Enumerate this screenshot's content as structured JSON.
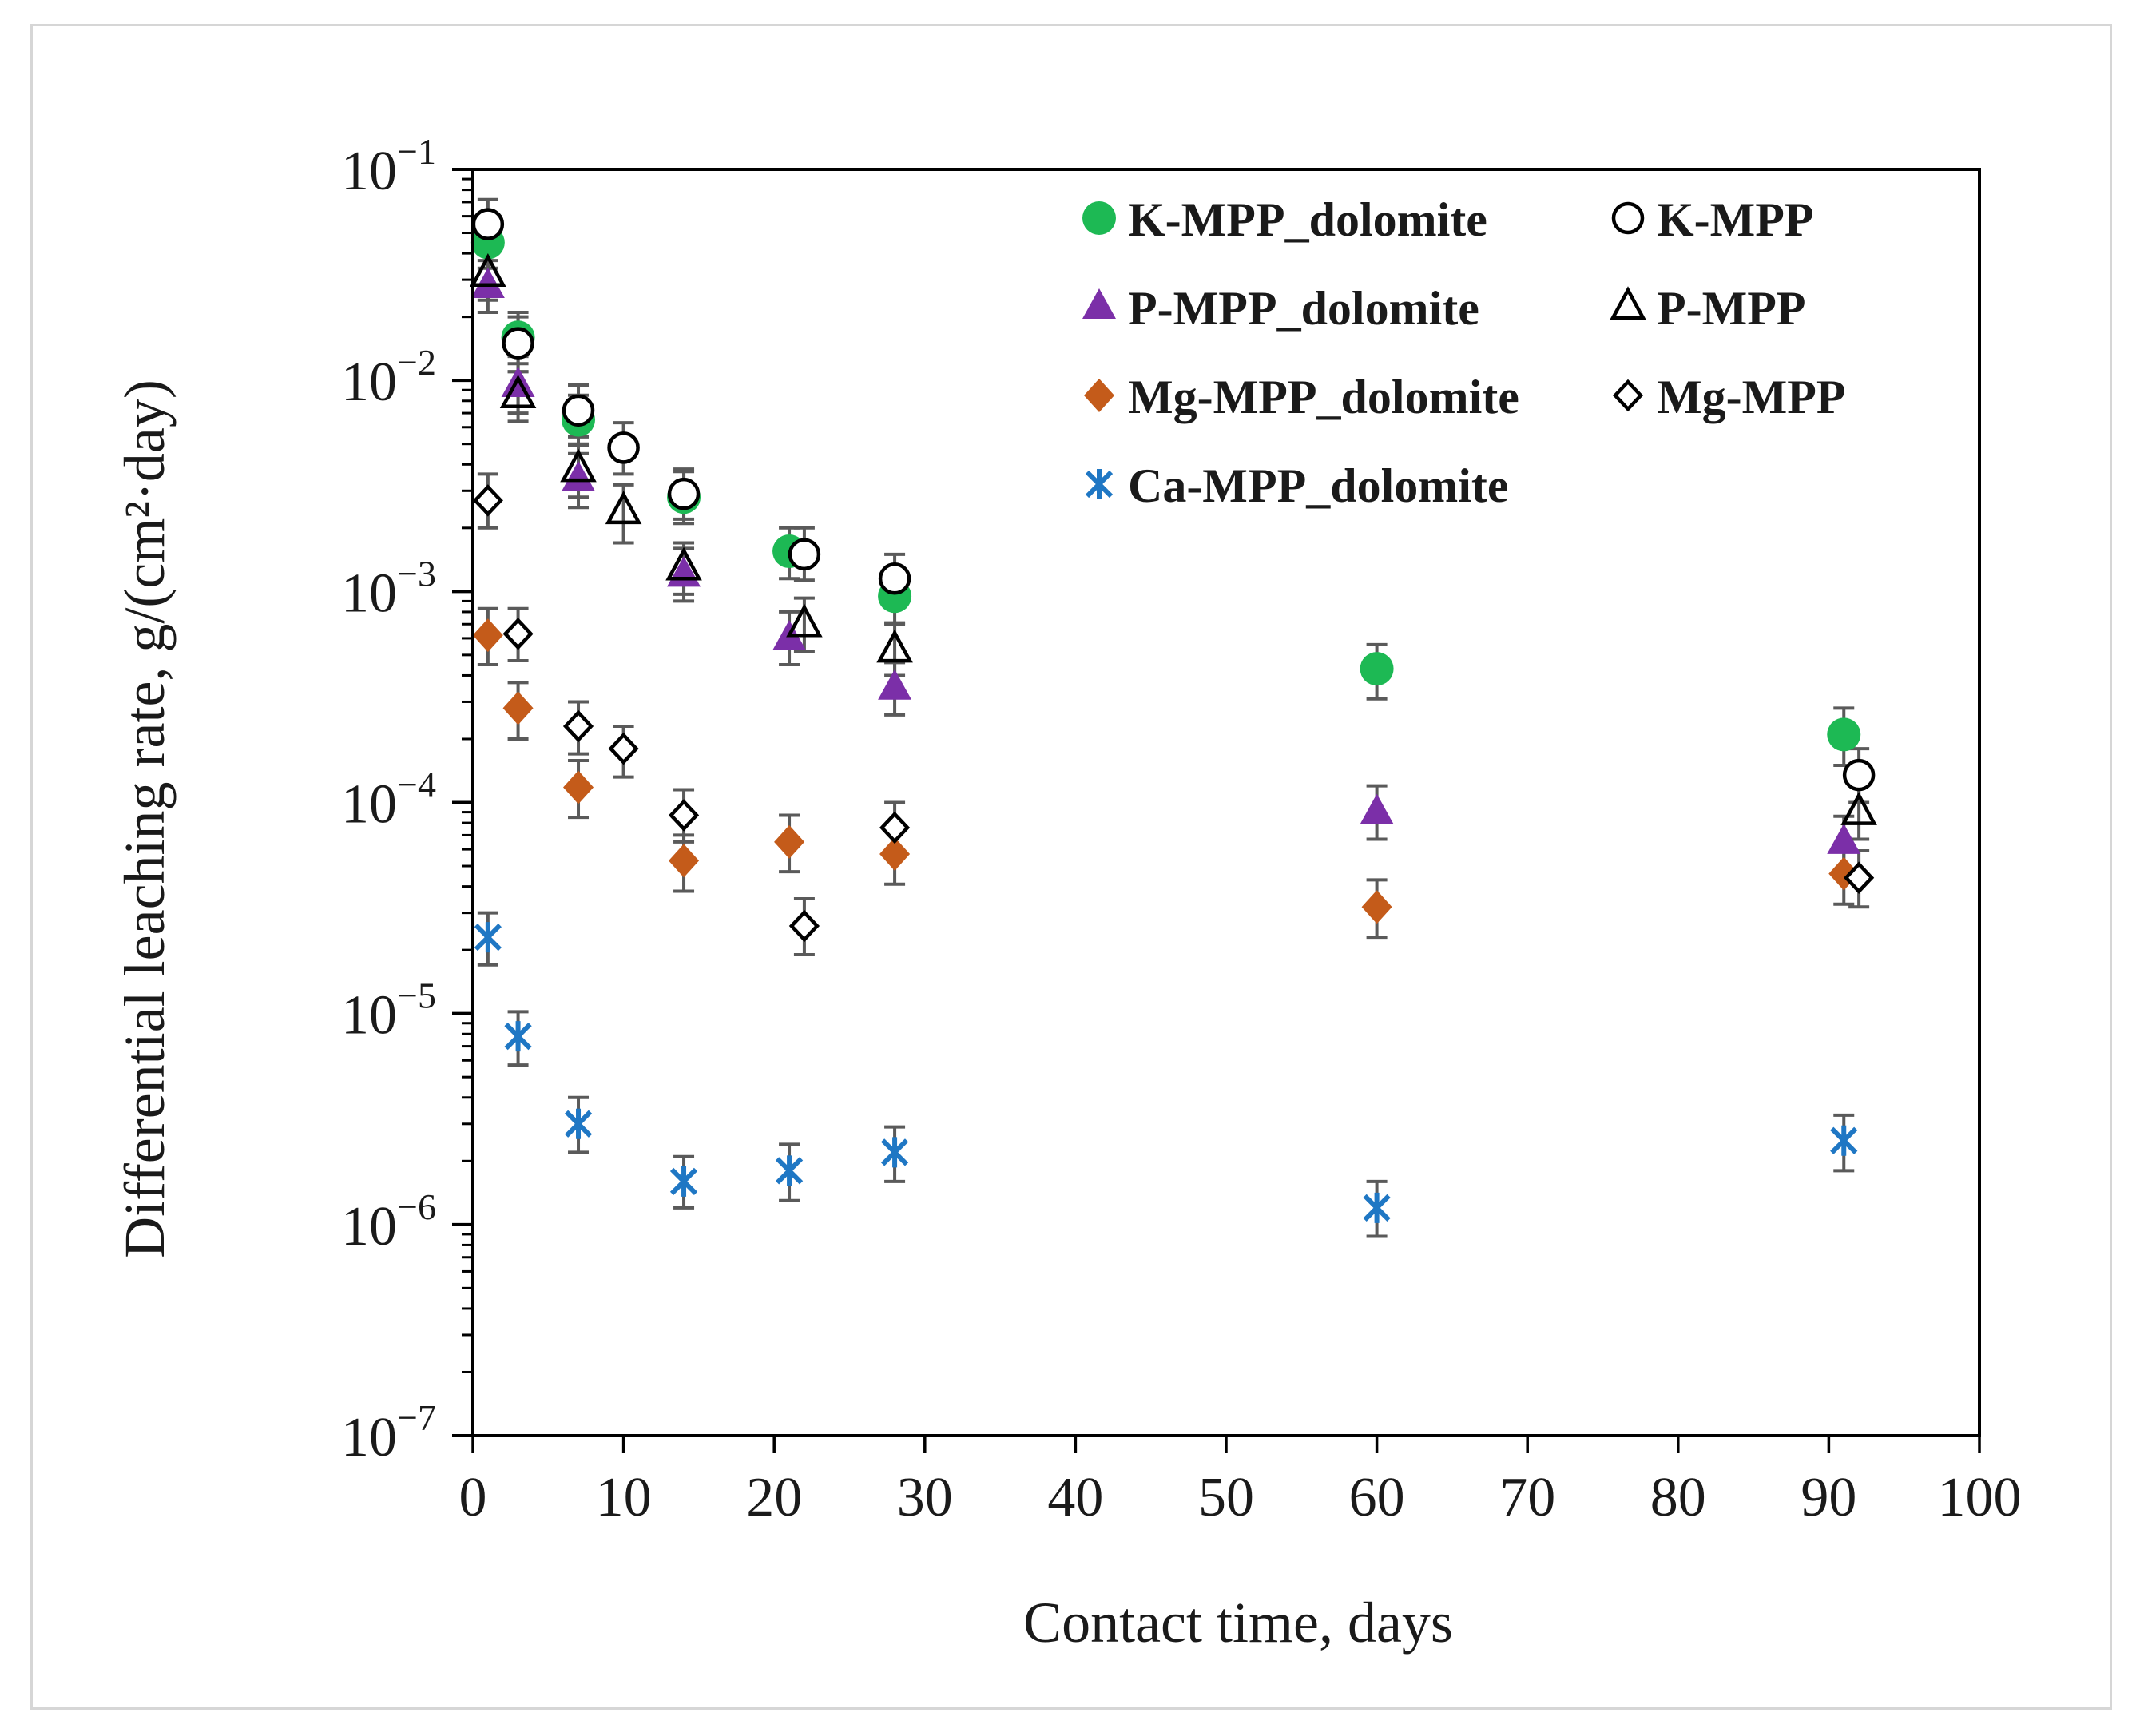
{
  "chart_data": {
    "type": "scatter",
    "title": "",
    "xlabel": "Contact time, days",
    "ylabel": "Differential leaching rate, g/(cm²·day)",
    "xlim": [
      0,
      100
    ],
    "ylim": [
      1e-07,
      0.1
    ],
    "yscale": "log",
    "grid": false,
    "legend_position": "top-right",
    "x_ticks": [
      {
        "value": 0,
        "label": "0"
      },
      {
        "value": 10,
        "label": "10"
      },
      {
        "value": 20,
        "label": "20"
      },
      {
        "value": 30,
        "label": "30"
      },
      {
        "value": 40,
        "label": "40"
      },
      {
        "value": 50,
        "label": "50"
      },
      {
        "value": 60,
        "label": "60"
      },
      {
        "value": 70,
        "label": "70"
      },
      {
        "value": 80,
        "label": "80"
      },
      {
        "value": 90,
        "label": "90"
      },
      {
        "value": 100,
        "label": "100"
      }
    ],
    "y_ticks": [
      {
        "value": 0.1,
        "base": "10",
        "exp": "−1"
      },
      {
        "value": 0.01,
        "base": "10",
        "exp": "−2"
      },
      {
        "value": 0.001,
        "base": "10",
        "exp": "−3"
      },
      {
        "value": 0.0001,
        "base": "10",
        "exp": "−4"
      },
      {
        "value": 1e-05,
        "base": "10",
        "exp": "−5"
      },
      {
        "value": 1e-06,
        "base": "10",
        "exp": "−6"
      },
      {
        "value": 1e-07,
        "base": "10",
        "exp": "−7"
      }
    ],
    "series": [
      {
        "name": "K-MPP_dolomite",
        "marker": "circle-filled",
        "color": "#1db954",
        "x": [
          1,
          3,
          7,
          14,
          21,
          28,
          60,
          91
        ],
        "y": [
          0.045,
          0.016,
          0.0065,
          0.0028,
          0.00155,
          0.00095,
          0.00043,
          0.00021
        ],
        "err_low": [
          0.034,
          0.012,
          0.0049,
          0.0021,
          0.00115,
          0.00071,
          0.00031,
          0.00015
        ],
        "err_high": [
          0.058,
          0.021,
          0.0085,
          0.0037,
          0.002,
          0.00124,
          0.00056,
          0.00028
        ]
      },
      {
        "name": "K-MPP",
        "marker": "circle-open",
        "color": "#000000",
        "x": [
          1,
          3,
          7,
          10,
          14,
          22,
          28,
          92
        ],
        "y": [
          0.055,
          0.015,
          0.0072,
          0.0048,
          0.0029,
          0.0015,
          0.00115,
          0.000135
        ],
        "err_low": [
          0.041,
          0.011,
          0.0054,
          0.0036,
          0.0022,
          0.00113,
          0.00086,
          0.0001
        ],
        "err_high": [
          0.072,
          0.02,
          0.0095,
          0.0063,
          0.0038,
          0.002,
          0.0015,
          0.00018
        ]
      },
      {
        "name": "P-MPP_dolomite",
        "marker": "triangle-filled",
        "color": "#7b2fa8",
        "x": [
          1,
          3,
          7,
          14,
          21,
          28,
          60,
          91
        ],
        "y": [
          0.028,
          0.0095,
          0.0034,
          0.0012,
          0.0006,
          0.00035,
          9e-05,
          6.5e-05
        ],
        "err_low": [
          0.021,
          0.007,
          0.0025,
          0.0009,
          0.00045,
          0.00026,
          6.7e-05,
          4.8e-05
        ],
        "err_high": [
          0.037,
          0.013,
          0.0045,
          0.0016,
          0.0008,
          0.00046,
          0.00012,
          8.6e-05
        ]
      },
      {
        "name": "P-MPP",
        "marker": "triangle-open",
        "color": "#000000",
        "x": [
          1,
          3,
          7,
          10,
          14,
          22,
          28,
          92
        ],
        "y": [
          0.032,
          0.0085,
          0.0038,
          0.0024,
          0.0013,
          0.0007,
          0.00053,
          9e-05
        ],
        "err_low": [
          0.024,
          0.0064,
          0.0028,
          0.0017,
          0.00097,
          0.00052,
          0.0004,
          6.7e-05
        ],
        "err_high": [
          0.042,
          0.011,
          0.005,
          0.0032,
          0.0017,
          0.00093,
          0.0007,
          0.00012
        ]
      },
      {
        "name": "Mg-MPP_dolomite",
        "marker": "diamond-filled",
        "color": "#c45b1a",
        "x": [
          1,
          3,
          7,
          14,
          21,
          28,
          60,
          91
        ],
        "y": [
          0.00062,
          0.00028,
          0.000118,
          5.3e-05,
          6.5e-05,
          5.7e-05,
          3.2e-05,
          4.6e-05
        ],
        "err_low": [
          0.00045,
          0.0002,
          8.5e-05,
          3.8e-05,
          4.7e-05,
          4.1e-05,
          2.3e-05,
          3.3e-05
        ],
        "err_high": [
          0.00083,
          0.00037,
          0.000158,
          7e-05,
          8.7e-05,
          7.6e-05,
          4.3e-05,
          6.2e-05
        ]
      },
      {
        "name": "Mg-MPP",
        "marker": "diamond-open",
        "color": "#000000",
        "x": [
          1,
          3,
          7,
          10,
          14,
          22,
          28,
          92
        ],
        "y": [
          0.0027,
          0.00063,
          0.00023,
          0.00018,
          8.7e-05,
          2.6e-05,
          7.6e-05,
          4.4e-05
        ],
        "err_low": [
          0.002,
          0.00047,
          0.00017,
          0.000132,
          6.5e-05,
          1.9e-05,
          5.7e-05,
          3.2e-05
        ],
        "err_high": [
          0.0036,
          0.00083,
          0.0003,
          0.00023,
          0.000115,
          3.5e-05,
          0.0001,
          5.9e-05
        ]
      },
      {
        "name": "Ca-MPP_dolomite",
        "marker": "asterisk",
        "color": "#1f77c4",
        "x": [
          1,
          3,
          7,
          14,
          21,
          28,
          60,
          91
        ],
        "y": [
          2.3e-05,
          7.8e-06,
          3e-06,
          1.6e-06,
          1.8e-06,
          2.2e-06,
          1.2e-06,
          2.5e-06
        ],
        "err_low": [
          1.7e-05,
          5.7e-06,
          2.2e-06,
          1.2e-06,
          1.3e-06,
          1.6e-06,
          8.8e-07,
          1.8e-06
        ],
        "err_high": [
          3e-05,
          1.02e-05,
          4e-06,
          2.1e-06,
          2.4e-06,
          2.9e-06,
          1.6e-06,
          3.3e-06
        ]
      }
    ]
  }
}
